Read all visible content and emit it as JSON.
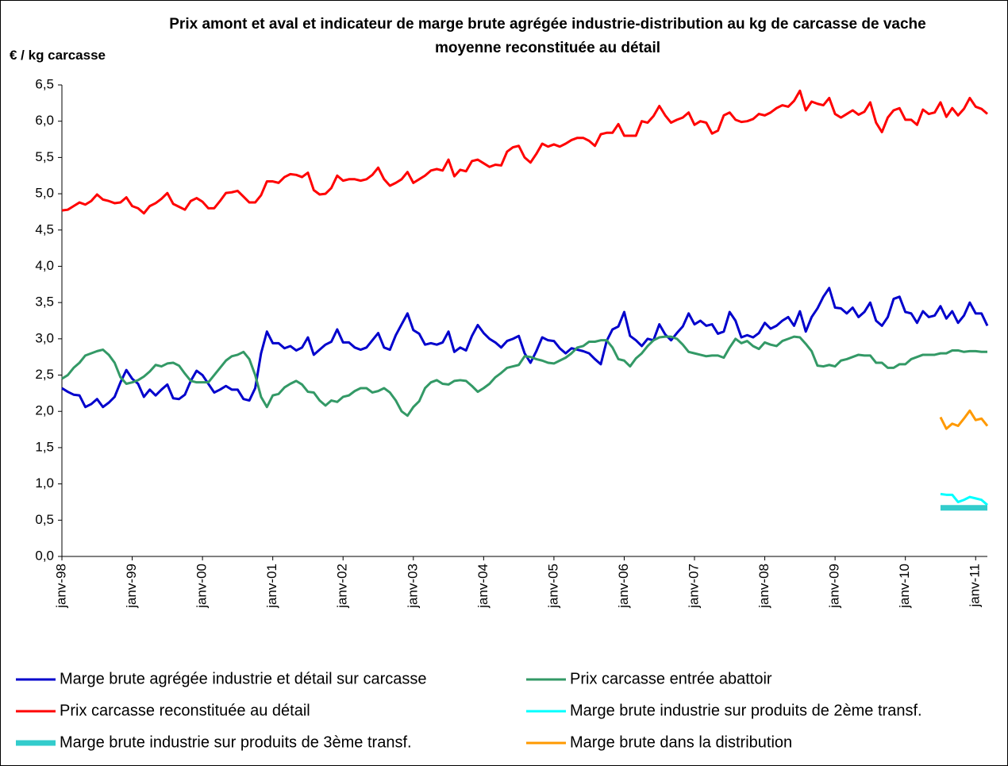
{
  "chart_data": {
    "type": "line",
    "title": "Prix amont et aval et indicateur de marge brute agrégée industrie-distribution au kg de carcasse de vache moyenne reconstituée au détail",
    "y_label": "€ / kg carcasse",
    "categories": [
      "janv-98",
      null,
      null,
      null,
      null,
      null,
      null,
      null,
      null,
      null,
      null,
      null,
      "janv-99",
      null,
      null,
      null,
      null,
      null,
      null,
      null,
      null,
      null,
      null,
      null,
      "janv-00",
      null,
      null,
      null,
      null,
      null,
      null,
      null,
      null,
      null,
      null,
      null,
      "janv-01",
      null,
      null,
      null,
      null,
      null,
      null,
      null,
      null,
      null,
      null,
      null,
      "janv-02",
      null,
      null,
      null,
      null,
      null,
      null,
      null,
      null,
      null,
      null,
      null,
      "janv-03",
      null,
      null,
      null,
      null,
      null,
      null,
      null,
      null,
      null,
      null,
      null,
      "janv-04",
      null,
      null,
      null,
      null,
      null,
      null,
      null,
      null,
      null,
      null,
      null,
      "janv-05",
      null,
      null,
      null,
      null,
      null,
      null,
      null,
      null,
      null,
      null,
      null,
      "janv-06",
      null,
      null,
      null,
      null,
      null,
      null,
      null,
      null,
      null,
      null,
      null,
      "janv-07",
      null,
      null,
      null,
      null,
      null,
      null,
      null,
      null,
      null,
      null,
      null,
      "janv-08",
      null,
      null,
      null,
      null,
      null,
      null,
      null,
      null,
      null,
      null,
      null,
      "janv-09",
      null,
      null,
      null,
      null,
      null,
      null,
      null,
      null,
      null,
      null,
      null,
      "janv-10",
      null,
      null,
      null,
      null,
      null,
      null,
      null,
      null,
      null,
      null,
      null,
      "janv-11",
      null,
      null
    ],
    "ylim": [
      0,
      6.5
    ],
    "yticks": [
      {
        "value": 0,
        "label": "0,0"
      },
      {
        "value": 0.5,
        "label": "0,5"
      },
      {
        "value": 1,
        "label": "1,0"
      },
      {
        "value": 1.5,
        "label": "1,5"
      },
      {
        "value": 2,
        "label": "2,0"
      },
      {
        "value": 2.5,
        "label": "2,5"
      },
      {
        "value": 3,
        "label": "3,0"
      },
      {
        "value": 3.5,
        "label": "3,5"
      },
      {
        "value": 4,
        "label": "4,0"
      },
      {
        "value": 4.5,
        "label": "4,5"
      },
      {
        "value": 5,
        "label": "5,0"
      },
      {
        "value": 5.5,
        "label": "5,5"
      },
      {
        "value": 6,
        "label": "6,0"
      },
      {
        "value": 6.5,
        "label": "6,5"
      }
    ],
    "series": [
      {
        "name": "Marge brute agrégée industrie et détail sur carcasse",
        "color": "#0000cc",
        "width": 3,
        "values": [
          2.32,
          2.27,
          2.23,
          2.22,
          2.06,
          2.1,
          2.17,
          2.06,
          2.12,
          2.2,
          2.4,
          2.57,
          2.45,
          2.38,
          2.2,
          2.3,
          2.22,
          2.3,
          2.37,
          2.18,
          2.17,
          2.23,
          2.42,
          2.56,
          2.5,
          2.38,
          2.26,
          2.3,
          2.35,
          2.3,
          2.3,
          2.17,
          2.15,
          2.32,
          2.8,
          3.1,
          2.94,
          2.94,
          2.87,
          2.9,
          2.84,
          2.88,
          3.02,
          2.78,
          2.85,
          2.92,
          2.96,
          3.13,
          2.95,
          2.95,
          2.88,
          2.85,
          2.88,
          2.98,
          3.08,
          2.88,
          2.85,
          3.05,
          3.2,
          3.35,
          3.12,
          3.07,
          2.92,
          2.94,
          2.92,
          2.95,
          3.1,
          2.82,
          2.88,
          2.84,
          3.04,
          3.19,
          3.08,
          3.0,
          2.95,
          2.88,
          2.97,
          3.0,
          3.04,
          2.8,
          2.67,
          2.83,
          3.02,
          2.98,
          2.97,
          2.87,
          2.8,
          2.87,
          2.85,
          2.83,
          2.8,
          2.72,
          2.65,
          2.97,
          3.13,
          3.17,
          3.37,
          3.04,
          2.98,
          2.9,
          3.0,
          2.98,
          3.2,
          3.06,
          2.98,
          3.08,
          3.17,
          3.35,
          3.2,
          3.25,
          3.18,
          3.2,
          3.07,
          3.1,
          3.37,
          3.25,
          3.02,
          3.05,
          3.02,
          3.08,
          3.22,
          3.14,
          3.18,
          3.25,
          3.3,
          3.18,
          3.38,
          3.1,
          3.3,
          3.42,
          3.58,
          3.7,
          3.43,
          3.42,
          3.35,
          3.43,
          3.3,
          3.37,
          3.5,
          3.25,
          3.18,
          3.3,
          3.55,
          3.58,
          3.37,
          3.35,
          3.22,
          3.38,
          3.3,
          3.32,
          3.45,
          3.28,
          3.38,
          3.22,
          3.32,
          3.5,
          3.35,
          3.35,
          3.18
        ]
      },
      {
        "name": "Prix carcasse entrée abattoir",
        "color": "#339966",
        "width": 3,
        "values": [
          2.45,
          2.5,
          2.6,
          2.67,
          2.77,
          2.8,
          2.83,
          2.85,
          2.78,
          2.67,
          2.47,
          2.38,
          2.4,
          2.43,
          2.48,
          2.55,
          2.64,
          2.62,
          2.66,
          2.67,
          2.63,
          2.52,
          2.42,
          2.4,
          2.4,
          2.4,
          2.5,
          2.6,
          2.7,
          2.76,
          2.78,
          2.82,
          2.72,
          2.5,
          2.2,
          2.06,
          2.22,
          2.24,
          2.33,
          2.38,
          2.42,
          2.37,
          2.27,
          2.26,
          2.15,
          2.08,
          2.15,
          2.13,
          2.2,
          2.22,
          2.28,
          2.32,
          2.32,
          2.26,
          2.28,
          2.32,
          2.26,
          2.15,
          2.0,
          1.94,
          2.06,
          2.14,
          2.32,
          2.4,
          2.43,
          2.38,
          2.37,
          2.42,
          2.43,
          2.42,
          2.35,
          2.27,
          2.32,
          2.38,
          2.47,
          2.53,
          2.6,
          2.62,
          2.64,
          2.76,
          2.75,
          2.72,
          2.7,
          2.67,
          2.66,
          2.7,
          2.74,
          2.8,
          2.88,
          2.9,
          2.96,
          2.96,
          2.98,
          2.98,
          2.88,
          2.72,
          2.7,
          2.62,
          2.73,
          2.8,
          2.9,
          2.98,
          3.02,
          3.03,
          3.03,
          3.0,
          2.92,
          2.82,
          2.8,
          2.78,
          2.76,
          2.77,
          2.77,
          2.74,
          2.88,
          3.0,
          2.94,
          2.97,
          2.9,
          2.86,
          2.95,
          2.92,
          2.9,
          2.97,
          3.0,
          3.03,
          3.02,
          2.93,
          2.83,
          2.63,
          2.62,
          2.64,
          2.62,
          2.7,
          2.72,
          2.75,
          2.78,
          2.77,
          2.77,
          2.67,
          2.67,
          2.6,
          2.6,
          2.65,
          2.65,
          2.72,
          2.75,
          2.78,
          2.78,
          2.78,
          2.8,
          2.8,
          2.84,
          2.84,
          2.82,
          2.83,
          2.83,
          2.82,
          2.82
        ]
      },
      {
        "name": "Prix carcasse reconstituée au détail",
        "color": "#ff0000",
        "width": 3,
        "values": [
          4.77,
          4.78,
          4.83,
          4.88,
          4.85,
          4.9,
          4.99,
          4.92,
          4.9,
          4.87,
          4.88,
          4.95,
          4.83,
          4.8,
          4.73,
          4.83,
          4.87,
          4.93,
          5.01,
          4.86,
          4.82,
          4.78,
          4.9,
          4.94,
          4.89,
          4.8,
          4.8,
          4.9,
          5.01,
          5.02,
          5.04,
          4.96,
          4.88,
          4.88,
          4.98,
          5.17,
          5.17,
          5.15,
          5.23,
          5.27,
          5.26,
          5.23,
          5.29,
          5.05,
          4.99,
          5.0,
          5.08,
          5.25,
          5.18,
          5.2,
          5.2,
          5.18,
          5.2,
          5.26,
          5.36,
          5.2,
          5.11,
          5.15,
          5.2,
          5.3,
          5.15,
          5.2,
          5.25,
          5.32,
          5.34,
          5.32,
          5.47,
          5.24,
          5.33,
          5.31,
          5.45,
          5.47,
          5.42,
          5.37,
          5.4,
          5.39,
          5.58,
          5.64,
          5.66,
          5.5,
          5.43,
          5.55,
          5.69,
          5.65,
          5.68,
          5.65,
          5.69,
          5.74,
          5.77,
          5.77,
          5.73,
          5.66,
          5.82,
          5.84,
          5.84,
          5.96,
          5.8,
          5.8,
          5.8,
          6.0,
          5.98,
          6.07,
          6.21,
          6.08,
          5.98,
          6.02,
          6.05,
          6.12,
          5.95,
          6.0,
          5.98,
          5.83,
          5.87,
          6.08,
          6.12,
          6.02,
          5.99,
          6.0,
          6.03,
          6.1,
          6.08,
          6.12,
          6.18,
          6.22,
          6.2,
          6.28,
          6.42,
          6.15,
          6.27,
          6.24,
          6.22,
          6.32,
          6.1,
          6.05,
          6.1,
          6.15,
          6.09,
          6.13,
          6.26,
          5.98,
          5.85,
          6.05,
          6.15,
          6.18,
          6.02,
          6.02,
          5.95,
          6.16,
          6.1,
          6.12,
          6.26,
          6.06,
          6.18,
          6.08,
          6.17,
          6.32,
          6.2,
          6.17,
          6.1
        ]
      },
      {
        "name": "Marge brute industrie sur produits de 2ème transf.",
        "color": "#00ffff",
        "width": 3,
        "values": [
          null,
          null,
          null,
          null,
          null,
          null,
          null,
          null,
          null,
          null,
          null,
          null,
          null,
          null,
          null,
          null,
          null,
          null,
          null,
          null,
          null,
          null,
          null,
          null,
          null,
          null,
          null,
          null,
          null,
          null,
          null,
          null,
          null,
          null,
          null,
          null,
          null,
          null,
          null,
          null,
          null,
          null,
          null,
          null,
          null,
          null,
          null,
          null,
          null,
          null,
          null,
          null,
          null,
          null,
          null,
          null,
          null,
          null,
          null,
          null,
          null,
          null,
          null,
          null,
          null,
          null,
          null,
          null,
          null,
          null,
          null,
          null,
          null,
          null,
          null,
          null,
          null,
          null,
          null,
          null,
          null,
          null,
          null,
          null,
          null,
          null,
          null,
          null,
          null,
          null,
          null,
          null,
          null,
          null,
          null,
          null,
          null,
          null,
          null,
          null,
          null,
          null,
          null,
          null,
          null,
          null,
          null,
          null,
          null,
          null,
          null,
          null,
          null,
          null,
          null,
          null,
          null,
          null,
          null,
          null,
          null,
          null,
          null,
          null,
          null,
          null,
          null,
          null,
          null,
          null,
          null,
          null,
          null,
          null,
          null,
          null,
          null,
          null,
          null,
          null,
          null,
          null,
          null,
          null,
          null,
          null,
          null,
          null,
          null,
          null,
          0.86,
          0.85,
          0.85,
          0.75,
          0.78,
          0.82,
          0.8,
          0.78,
          0.71
        ]
      },
      {
        "name": "Marge brute industrie sur produits de 3ème transf.",
        "color": "#33cccc",
        "width": 7,
        "values": [
          null,
          null,
          null,
          null,
          null,
          null,
          null,
          null,
          null,
          null,
          null,
          null,
          null,
          null,
          null,
          null,
          null,
          null,
          null,
          null,
          null,
          null,
          null,
          null,
          null,
          null,
          null,
          null,
          null,
          null,
          null,
          null,
          null,
          null,
          null,
          null,
          null,
          null,
          null,
          null,
          null,
          null,
          null,
          null,
          null,
          null,
          null,
          null,
          null,
          null,
          null,
          null,
          null,
          null,
          null,
          null,
          null,
          null,
          null,
          null,
          null,
          null,
          null,
          null,
          null,
          null,
          null,
          null,
          null,
          null,
          null,
          null,
          null,
          null,
          null,
          null,
          null,
          null,
          null,
          null,
          null,
          null,
          null,
          null,
          null,
          null,
          null,
          null,
          null,
          null,
          null,
          null,
          null,
          null,
          null,
          null,
          null,
          null,
          null,
          null,
          null,
          null,
          null,
          null,
          null,
          null,
          null,
          null,
          null,
          null,
          null,
          null,
          null,
          null,
          null,
          null,
          null,
          null,
          null,
          null,
          null,
          null,
          null,
          null,
          null,
          null,
          null,
          null,
          null,
          null,
          null,
          null,
          null,
          null,
          null,
          null,
          null,
          null,
          null,
          null,
          null,
          null,
          null,
          null,
          null,
          null,
          null,
          null,
          null,
          null,
          0.67,
          0.67,
          0.67,
          0.67,
          0.67,
          0.67,
          0.67,
          0.67,
          0.67
        ]
      },
      {
        "name": "Marge brute dans la distribution",
        "color": "#ff9900",
        "width": 3,
        "values": [
          null,
          null,
          null,
          null,
          null,
          null,
          null,
          null,
          null,
          null,
          null,
          null,
          null,
          null,
          null,
          null,
          null,
          null,
          null,
          null,
          null,
          null,
          null,
          null,
          null,
          null,
          null,
          null,
          null,
          null,
          null,
          null,
          null,
          null,
          null,
          null,
          null,
          null,
          null,
          null,
          null,
          null,
          null,
          null,
          null,
          null,
          null,
          null,
          null,
          null,
          null,
          null,
          null,
          null,
          null,
          null,
          null,
          null,
          null,
          null,
          null,
          null,
          null,
          null,
          null,
          null,
          null,
          null,
          null,
          null,
          null,
          null,
          null,
          null,
          null,
          null,
          null,
          null,
          null,
          null,
          null,
          null,
          null,
          null,
          null,
          null,
          null,
          null,
          null,
          null,
          null,
          null,
          null,
          null,
          null,
          null,
          null,
          null,
          null,
          null,
          null,
          null,
          null,
          null,
          null,
          null,
          null,
          null,
          null,
          null,
          null,
          null,
          null,
          null,
          null,
          null,
          null,
          null,
          null,
          null,
          null,
          null,
          null,
          null,
          null,
          null,
          null,
          null,
          null,
          null,
          null,
          null,
          null,
          null,
          null,
          null,
          null,
          null,
          null,
          null,
          null,
          null,
          null,
          null,
          null,
          null,
          null,
          null,
          null,
          null,
          1.92,
          1.76,
          1.83,
          1.8,
          1.9,
          2.01,
          1.88,
          1.9,
          1.8
        ]
      }
    ]
  }
}
